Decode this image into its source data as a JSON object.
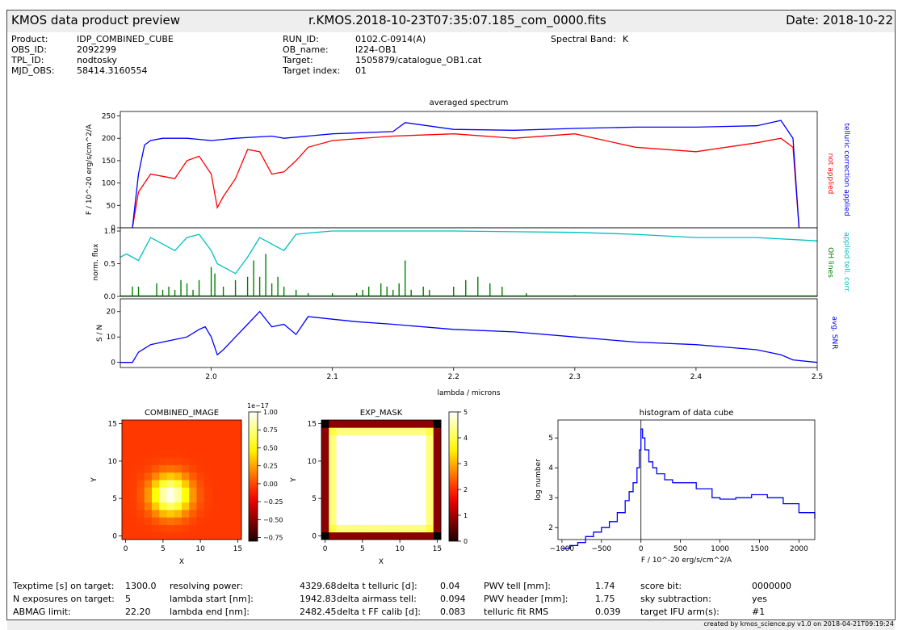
{
  "header": {
    "title": "KMOS data product preview",
    "filename": "r.KMOS.2018-10-23T07:35:07.185_com_0000.fits",
    "date": "Date: 2018-10-22"
  },
  "meta": {
    "col1": [
      {
        "label": "Product:",
        "value": "IDP_COMBINED_CUBE"
      },
      {
        "label": "OBS_ID:",
        "value": "2092299"
      },
      {
        "label": "TPL_ID:",
        "value": "nodtosky"
      },
      {
        "label": "MJD_OBS:",
        "value": "58414.3160554"
      }
    ],
    "col2": [
      {
        "label": "RUN_ID:",
        "value": "0102.C-0914(A)"
      },
      {
        "label": "OB_name:",
        "value": "l224-OB1"
      },
      {
        "label": "Target:",
        "value": "1505879/catalogue_OB1.cat"
      },
      {
        "label": "Target index:",
        "value": "01"
      }
    ],
    "band_label": "Spectral Band:",
    "band_value": "K"
  },
  "stats": {
    "c1": [
      {
        "label": "Texptime [s] on target:",
        "value": "1300.0"
      },
      {
        "label": "N exposures on target:",
        "value": "5"
      },
      {
        "label": "ABMAG limit:",
        "value": "22.20"
      }
    ],
    "c2": [
      {
        "label": "resolving power:",
        "value": "4329.68"
      },
      {
        "label": "lambda start [nm]:",
        "value": "1942.83"
      },
      {
        "label": "lambda end [nm]:",
        "value": "2482.45"
      }
    ],
    "c3": [
      {
        "label": "delta t telluric [d]:",
        "value": "0.04"
      },
      {
        "label": "delta airmass tell:",
        "value": "0.094"
      },
      {
        "label": "delta t FF calib [d]:",
        "value": "0.083"
      }
    ],
    "c4": [
      {
        "label": "PWV tell [mm]:",
        "value": "1.74"
      },
      {
        "label": "PWV header [mm]:",
        "value": "1.75"
      },
      {
        "label": "telluric fit RMS",
        "value": "0.039"
      }
    ],
    "c5": [
      {
        "label": "score bit:",
        "value": "0000000"
      },
      {
        "label": "sky subtraction:",
        "value": "yes"
      },
      {
        "label": "target IFU arm(s):",
        "value": "#1"
      }
    ]
  },
  "footer": "created by kmos_science.py v1.0 on 2018-04-21T09:19:24",
  "colors": {
    "red": "#ff0000",
    "blue": "#0000ff",
    "cyan": "#00bfbf",
    "green": "#008000"
  },
  "chart_data": [
    {
      "type": "line",
      "id": "spectrum",
      "title": "averaged spectrum",
      "ylabel": "F / 10^-20 erg/s/cm^2/A",
      "xlim": [
        1.925,
        2.5
      ],
      "ylim": [
        0,
        260
      ],
      "yticks": [
        0,
        50,
        100,
        150,
        200,
        250
      ],
      "series": [
        {
          "name": "telluric correction applied",
          "color": "#0000ff",
          "x": [
            1.935,
            1.94,
            1.945,
            1.95,
            1.96,
            1.98,
            2.0,
            2.02,
            2.05,
            2.06,
            2.1,
            2.15,
            2.16,
            2.2,
            2.25,
            2.3,
            2.35,
            2.4,
            2.45,
            2.47,
            2.48,
            2.485
          ],
          "y": [
            0,
            120,
            185,
            195,
            200,
            200,
            195,
            200,
            205,
            200,
            210,
            215,
            235,
            220,
            218,
            222,
            225,
            225,
            228,
            240,
            200,
            0
          ]
        },
        {
          "name": "not applied",
          "color": "#ff0000",
          "x": [
            1.935,
            1.94,
            1.945,
            1.95,
            1.96,
            1.97,
            1.98,
            1.99,
            2.0,
            2.005,
            2.01,
            2.02,
            2.03,
            2.04,
            2.05,
            2.06,
            2.07,
            2.08,
            2.1,
            2.15,
            2.2,
            2.25,
            2.3,
            2.35,
            2.4,
            2.45,
            2.47,
            2.48,
            2.485
          ],
          "y": [
            0,
            80,
            100,
            120,
            115,
            110,
            150,
            160,
            120,
            45,
            70,
            110,
            175,
            170,
            120,
            125,
            150,
            180,
            195,
            205,
            210,
            200,
            210,
            180,
            170,
            190,
            200,
            180,
            0
          ]
        }
      ]
    },
    {
      "type": "line",
      "id": "tellcorr",
      "ylabel": "norm. flux",
      "xlim": [
        1.925,
        2.5
      ],
      "ylim": [
        0,
        1.05
      ],
      "yticks": [
        0.0,
        0.5,
        1.0
      ],
      "series": [
        {
          "name": "applied tell. corr.",
          "color": "#00bfbf",
          "x": [
            1.925,
            1.93,
            1.94,
            1.95,
            1.96,
            1.97,
            1.98,
            1.99,
            2.0,
            2.005,
            2.01,
            2.02,
            2.03,
            2.04,
            2.05,
            2.06,
            2.07,
            2.08,
            2.1,
            2.15,
            2.2,
            2.25,
            2.3,
            2.35,
            2.4,
            2.45,
            2.5
          ],
          "y": [
            0.6,
            0.65,
            0.55,
            0.9,
            0.8,
            0.7,
            0.9,
            0.95,
            0.7,
            0.5,
            0.45,
            0.35,
            0.6,
            0.9,
            0.8,
            0.7,
            0.95,
            0.97,
            1.0,
            1.0,
            1.0,
            0.99,
            0.98,
            0.95,
            0.9,
            0.9,
            0.85
          ]
        },
        {
          "name": "OH lines",
          "color": "#008000",
          "type": "lines",
          "x": [
            1.935,
            1.94,
            1.955,
            1.96,
            1.965,
            1.97,
            1.975,
            1.98,
            1.985,
            1.99,
            2.0,
            2.003,
            2.01,
            2.02,
            2.03,
            2.035,
            2.04,
            2.045,
            2.05,
            2.055,
            2.06,
            2.07,
            2.08,
            2.1,
            2.12,
            2.125,
            2.13,
            2.14,
            2.145,
            2.15,
            2.155,
            2.16,
            2.165,
            2.175,
            2.18,
            2.2,
            2.21,
            2.22,
            2.23,
            2.24,
            2.26,
            2.3
          ],
          "y": [
            0.15,
            0.15,
            0.2,
            0.1,
            0.15,
            0.1,
            0.25,
            0.2,
            0.1,
            0.25,
            0.45,
            0.35,
            0.15,
            0.25,
            0.3,
            0.55,
            0.3,
            0.65,
            0.2,
            0.3,
            0.15,
            0.1,
            0.05,
            0.05,
            0.05,
            0.1,
            0.15,
            0.2,
            0.15,
            0.1,
            0.2,
            0.55,
            0.1,
            0.15,
            0.1,
            0.15,
            0.25,
            0.3,
            0.2,
            0.15,
            0.05,
            0.02
          ]
        }
      ]
    },
    {
      "type": "line",
      "id": "snr",
      "ylabel": "S / N",
      "xlabel": "lambda / microns",
      "xlim": [
        1.925,
        2.5
      ],
      "ylim": [
        -2,
        25
      ],
      "yticks": [
        0,
        10,
        20
      ],
      "xticks": [
        2.0,
        2.1,
        2.2,
        2.3,
        2.4,
        2.5
      ],
      "series": [
        {
          "name": "avg. SNR",
          "color": "#0000ff",
          "x": [
            1.925,
            1.935,
            1.94,
            1.95,
            1.96,
            1.97,
            1.98,
            1.99,
            1.995,
            2.0,
            2.005,
            2.01,
            2.02,
            2.03,
            2.04,
            2.05,
            2.06,
            2.07,
            2.08,
            2.1,
            2.12,
            2.15,
            2.2,
            2.25,
            2.3,
            2.35,
            2.4,
            2.45,
            2.47,
            2.48,
            2.5
          ],
          "y": [
            0,
            0,
            4,
            7,
            8,
            9,
            10,
            13,
            14,
            10,
            3,
            5,
            10,
            15,
            20,
            14,
            15,
            11,
            18,
            17,
            16,
            15,
            13,
            12,
            10,
            8,
            7,
            5,
            3,
            1,
            0
          ]
        }
      ]
    },
    {
      "type": "heatmap",
      "id": "combined_image",
      "title": "COMBINED_IMAGE",
      "xlabel": "X",
      "ylabel": "Y",
      "xlim": [
        -0.5,
        15.5
      ],
      "ylim": [
        -0.5,
        15.5
      ],
      "xticks": [
        0,
        5,
        10,
        15
      ],
      "yticks": [
        0,
        5,
        10,
        15
      ],
      "center": [
        6,
        5.5
      ],
      "sigma": 1.8,
      "peak": 1e-17,
      "background": 0.0,
      "colorbar": {
        "offset_label": "1e−17",
        "range": [
          -0.8,
          1.0
        ],
        "ticks": [
          "1.00",
          "0.75",
          "0.50",
          "0.25",
          "0.00",
          "−0.25",
          "−0.50",
          "−0.75"
        ],
        "tick_values": [
          1.0,
          0.75,
          0.5,
          0.25,
          0.0,
          -0.25,
          -0.5,
          -0.75
        ]
      }
    },
    {
      "type": "heatmap",
      "id": "exp_mask",
      "title": "EXP_MASK",
      "xlabel": "X",
      "ylabel": "Y",
      "xlim": [
        -0.5,
        15.5
      ],
      "ylim": [
        -0.5,
        15.5
      ],
      "xticks": [
        0,
        5,
        10,
        15
      ],
      "yticks": [
        0,
        5,
        10,
        15
      ],
      "colorbar": {
        "range": [
          0,
          5
        ],
        "ticks": [
          "5",
          "4",
          "3",
          "2",
          "1",
          "0"
        ],
        "tick_values": [
          5,
          4,
          3,
          2,
          1,
          0
        ]
      }
    },
    {
      "type": "line",
      "id": "histogram",
      "title": "histogram of data cube",
      "xlabel": "F / 10^-20 erg/s/cm^2/A",
      "ylabel": "log number",
      "xlim": [
        -1050,
        2200
      ],
      "ylim": [
        1.6,
        5.6
      ],
      "xticks": [
        -1000,
        -500,
        0,
        500,
        1000,
        1500,
        2000
      ],
      "xtick_labels": [
        "−1000",
        "−500",
        "0",
        "500",
        "1000",
        "1500",
        "2000"
      ],
      "yticks": [
        2,
        3,
        4,
        5
      ],
      "series": [
        {
          "name": "histogram",
          "color": "#0000ff",
          "step": true,
          "x": [
            -1000,
            -900,
            -800,
            -700,
            -600,
            -500,
            -400,
            -300,
            -200,
            -150,
            -100,
            -50,
            -20,
            0,
            20,
            50,
            100,
            150,
            200,
            300,
            400,
            500,
            700,
            900,
            1000,
            1200,
            1400,
            1600,
            1800,
            2000,
            2200
          ],
          "y": [
            1.3,
            1.4,
            1.5,
            1.7,
            1.85,
            2.0,
            2.2,
            2.5,
            2.9,
            3.2,
            3.5,
            4.0,
            4.6,
            5.3,
            5.0,
            4.6,
            4.2,
            4.0,
            3.8,
            3.6,
            3.5,
            3.5,
            3.3,
            3.0,
            2.95,
            3.0,
            3.1,
            3.0,
            2.8,
            2.5,
            2.3
          ]
        }
      ]
    }
  ]
}
